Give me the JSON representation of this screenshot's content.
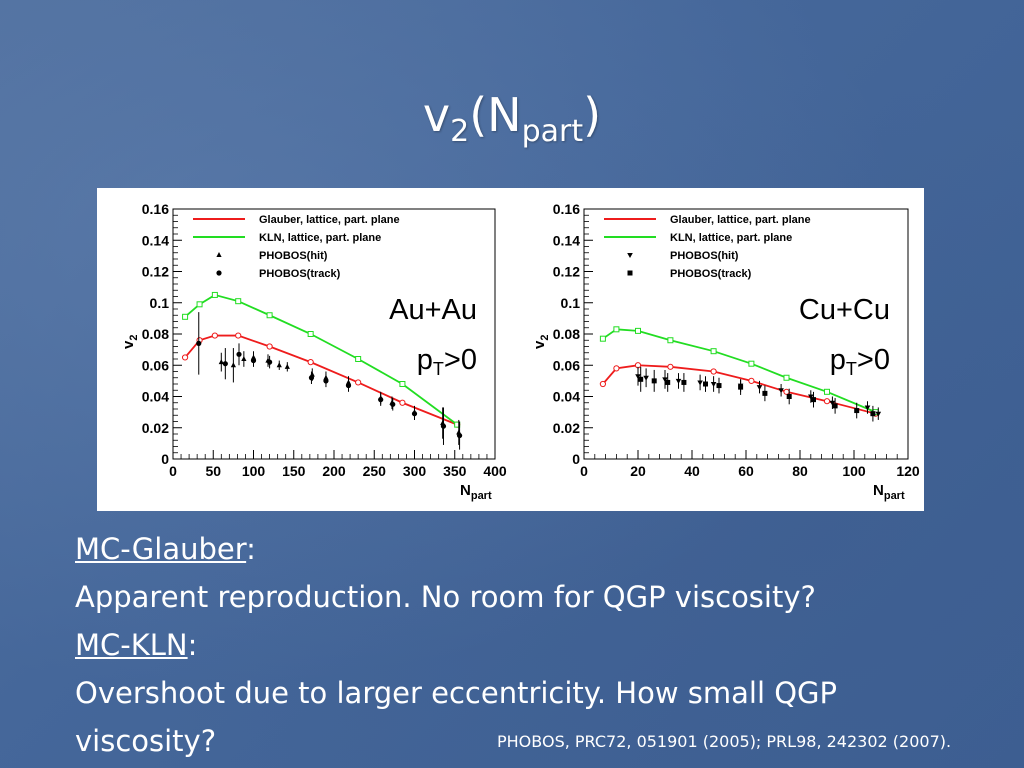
{
  "slide": {
    "title_main": "v",
    "title_sub1": "2",
    "title_mid": "(N",
    "title_sub2": "part",
    "title_end": ")"
  },
  "text": {
    "h1": "MC-Glauber",
    "h1_colon": ":",
    "line1": "Apparent reproduction. No room for QGP viscosity?",
    "h2": "MC-KLN",
    "h2_colon": ":",
    "line2": "Overshoot due to larger eccentricity. How small QGP",
    "line3": "viscosity?"
  },
  "citation": "PHOBOS, PRC72, 051901 (2005); PRL98, 242302 (2007).",
  "colors": {
    "glauber": "#ee1c1c",
    "kln": "#22dd22",
    "data": "#000000"
  },
  "chart_data": [
    {
      "type": "line",
      "system": "Au+Au",
      "cut_main": "p",
      "cut_sub": "T",
      "cut_end": ">0",
      "xlabel_main": "N",
      "xlabel_sub": "part",
      "ylabel_main": "v",
      "ylabel_sub": "2",
      "xlim": [
        0,
        400
      ],
      "ylim": [
        0,
        0.16
      ],
      "xticks": [
        0,
        50,
        100,
        150,
        200,
        250,
        300,
        350,
        400
      ],
      "yticks": [
        "0",
        "0.02",
        "0.04",
        "0.06",
        "0.08",
        "0.1",
        "0.12",
        "0.14",
        "0.16"
      ],
      "legend": [
        "Glauber, lattice, part. plane",
        "KLN, lattice, part. plane",
        "PHOBOS(hit)",
        "PHOBOS(track)"
      ],
      "series": [
        {
          "name": "Glauber, lattice, part. plane",
          "style": "line",
          "x": [
            15,
            33,
            52,
            81,
            120,
            171,
            230,
            285,
            353
          ],
          "y": [
            0.065,
            0.076,
            0.079,
            0.079,
            0.072,
            0.062,
            0.049,
            0.036,
            0.022
          ]
        },
        {
          "name": "KLN, lattice, part. plane",
          "style": "line",
          "x": [
            15,
            33,
            52,
            81,
            120,
            171,
            230,
            285,
            353
          ],
          "y": [
            0.091,
            0.099,
            0.105,
            0.101,
            0.092,
            0.08,
            0.064,
            0.048,
            0.022
          ]
        },
        {
          "name": "PHOBOS(hit)",
          "style": "triangle",
          "x": [
            60,
            75,
            88,
            100,
            118,
            132,
            142,
            173,
            190,
            218,
            258,
            272,
            300,
            335,
            355
          ],
          "y": [
            0.062,
            0.06,
            0.064,
            0.065,
            0.063,
            0.06,
            0.059,
            0.054,
            0.052,
            0.049,
            0.039,
            0.036,
            0.03,
            0.023,
            0.017
          ],
          "err": [
            0.006,
            0.011,
            0.005,
            0.004,
            0.004,
            0.003,
            0.003,
            0.004,
            0.004,
            0.004,
            0.004,
            0.004,
            0.004,
            0.01,
            0.008
          ]
        },
        {
          "name": "PHOBOS(track)",
          "style": "circle",
          "x": [
            32,
            65,
            82,
            100,
            120,
            172,
            190,
            218,
            258,
            273,
            300,
            336,
            356
          ],
          "y": [
            0.074,
            0.061,
            0.067,
            0.063,
            0.062,
            0.052,
            0.05,
            0.047,
            0.038,
            0.035,
            0.029,
            0.021,
            0.015
          ],
          "err": [
            0.02,
            0.01,
            0.007,
            0.004,
            0.004,
            0.004,
            0.004,
            0.004,
            0.004,
            0.004,
            0.004,
            0.012,
            0.009
          ]
        }
      ]
    },
    {
      "type": "line",
      "system": "Cu+Cu",
      "cut_main": "p",
      "cut_sub": "T",
      "cut_end": ">0",
      "xlabel_main": "N",
      "xlabel_sub": "part",
      "ylabel_main": "v",
      "ylabel_sub": "2",
      "xlim": [
        0,
        120
      ],
      "ylim": [
        0,
        0.16
      ],
      "xticks": [
        0,
        20,
        40,
        60,
        80,
        100,
        120
      ],
      "yticks": [
        "0",
        "0.02",
        "0.04",
        "0.06",
        "0.08",
        "0.1",
        "0.12",
        "0.14",
        "0.16"
      ],
      "legend": [
        "Glauber, lattice, part. plane",
        "KLN, lattice, part. plane",
        "PHOBOS(hit)",
        "PHOBOS(track)"
      ],
      "series": [
        {
          "name": "Glauber, lattice, part. plane",
          "style": "line",
          "x": [
            7,
            12,
            20,
            32,
            48,
            62,
            75,
            90,
            108
          ],
          "y": [
            0.048,
            0.058,
            0.06,
            0.059,
            0.056,
            0.05,
            0.043,
            0.037,
            0.029
          ]
        },
        {
          "name": "KLN, lattice, part. plane",
          "style": "line",
          "x": [
            7,
            12,
            20,
            32,
            48,
            62,
            75,
            90,
            108
          ],
          "y": [
            0.077,
            0.083,
            0.082,
            0.076,
            0.069,
            0.061,
            0.052,
            0.043,
            0.03
          ]
        },
        {
          "name": "PHOBOS(hit)",
          "style": "down-triangle",
          "x": [
            20,
            23,
            30,
            35,
            43,
            48,
            58,
            65,
            73,
            84,
            92,
            105,
            109
          ],
          "y": [
            0.053,
            0.052,
            0.051,
            0.05,
            0.049,
            0.048,
            0.047,
            0.046,
            0.044,
            0.04,
            0.036,
            0.033,
            0.029
          ],
          "err": [
            0.006,
            0.006,
            0.006,
            0.005,
            0.005,
            0.005,
            0.004,
            0.004,
            0.004,
            0.004,
            0.004,
            0.004,
            0.004
          ]
        },
        {
          "name": "PHOBOS(track)",
          "style": "square",
          "x": [
            21,
            26,
            31,
            37,
            45,
            50,
            58,
            67,
            76,
            85,
            93,
            101,
            107
          ],
          "y": [
            0.051,
            0.05,
            0.049,
            0.049,
            0.048,
            0.047,
            0.046,
            0.042,
            0.04,
            0.038,
            0.034,
            0.031,
            0.029
          ],
          "err": [
            0.008,
            0.007,
            0.006,
            0.006,
            0.005,
            0.005,
            0.005,
            0.005,
            0.005,
            0.005,
            0.005,
            0.005,
            0.005
          ]
        }
      ]
    }
  ]
}
